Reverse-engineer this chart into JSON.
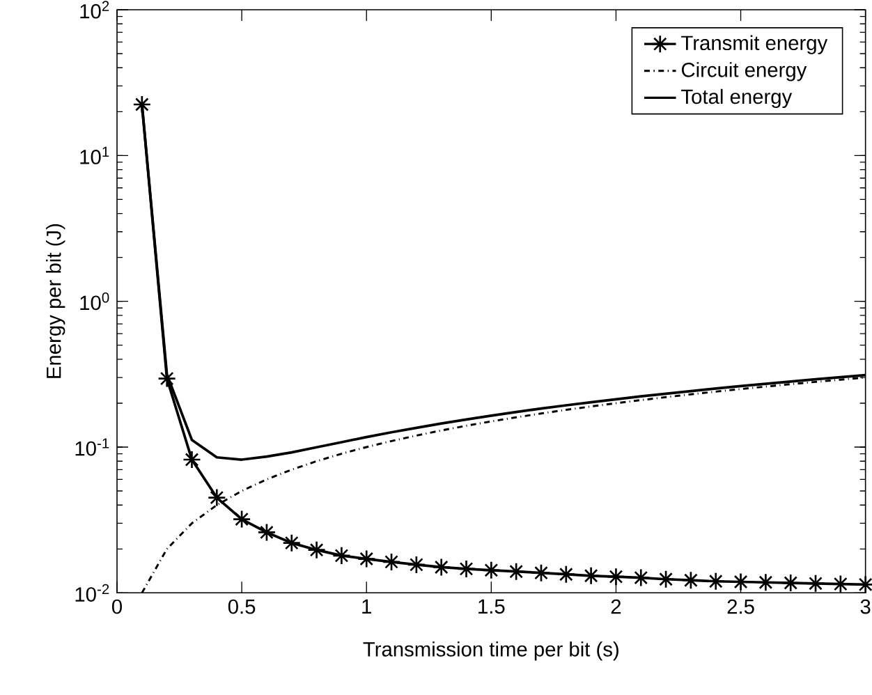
{
  "chart_data": {
    "type": "line",
    "xlabel": "Transmission time per bit (s)",
    "ylabel": "Energy per bit (J)",
    "log": "y",
    "grid": false,
    "legend": "top right",
    "xlim": [
      0,
      3
    ],
    "ylim": [
      0.01,
      100
    ],
    "xticks": [
      0,
      0.5,
      1,
      1.5,
      2,
      2.5,
      3
    ],
    "yticks": [
      {
        "value": 0.01,
        "label": "10$^{-2}$"
      },
      {
        "value": 0.1,
        "label": "10$^{-1}$"
      },
      {
        "value": 1,
        "label": "10$^{0}$"
      },
      {
        "value": 10,
        "label": "10$^{1}$"
      },
      {
        "value": 100,
        "label": "10$^{2}$"
      }
    ],
    "x": [
      0.1,
      0.2,
      0.3,
      0.4,
      0.5,
      0.6,
      0.7,
      0.8,
      0.9,
      1.0,
      1.1,
      1.2,
      1.3,
      1.4,
      1.5,
      1.6,
      1.7,
      1.8,
      1.9,
      2.0,
      2.1,
      2.2,
      2.3,
      2.4,
      2.5,
      2.6,
      2.7,
      2.8,
      2.9,
      3.0
    ],
    "series": [
      {
        "name": "Transmit energy",
        "color": "#000000",
        "marker": "cross",
        "line_style": "solid",
        "values": [
          22.4,
          0.295,
          0.082,
          0.045,
          0.032,
          0.026,
          0.022,
          0.0197,
          0.018,
          0.0171,
          0.0163,
          0.0156,
          0.015,
          0.0146,
          0.0143,
          0.014,
          0.0137,
          0.0134,
          0.0131,
          0.0129,
          0.0127,
          0.0124,
          0.0122,
          0.012,
          0.0119,
          0.0118,
          0.0117,
          0.0116,
          0.0115,
          0.0114
        ]
      },
      {
        "name": "Circuit energy",
        "color": "#000000",
        "marker": "none",
        "line_style": "dashdot",
        "values": [
          0.01,
          0.02,
          0.03,
          0.04,
          0.05,
          0.06,
          0.07,
          0.08,
          0.09,
          0.1,
          0.11,
          0.12,
          0.13,
          0.14,
          0.15,
          0.16,
          0.17,
          0.18,
          0.19,
          0.2,
          0.21,
          0.22,
          0.23,
          0.24,
          0.25,
          0.26,
          0.27,
          0.28,
          0.29,
          0.3
        ]
      },
      {
        "name": "Total energy",
        "color": "#000000",
        "marker": "none",
        "line_style": "solid",
        "values": [
          22.41,
          0.315,
          0.112,
          0.085,
          0.082,
          0.086,
          0.092,
          0.0997,
          0.108,
          0.1171,
          0.1263,
          0.1356,
          0.145,
          0.1546,
          0.1643,
          0.174,
          0.1837,
          0.1934,
          0.2031,
          0.2129,
          0.2227,
          0.2324,
          0.2422,
          0.252,
          0.2619,
          0.2718,
          0.2817,
          0.2916,
          0.3015,
          0.3114
        ]
      }
    ]
  }
}
